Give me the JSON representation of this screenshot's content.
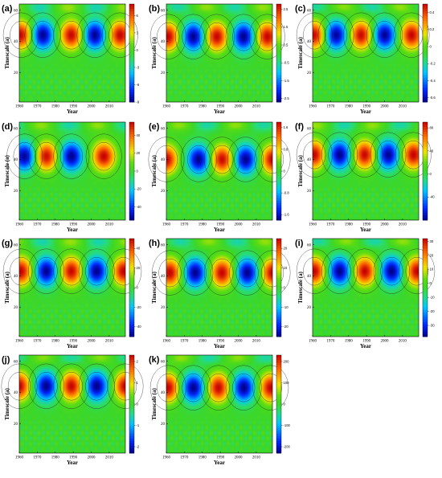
{
  "figure": {
    "y_tick_labels": [
      "20",
      "40",
      "60"
    ],
    "x_tick_labels": [
      "1960",
      "1970",
      "1980",
      "1990",
      "2000",
      "2010"
    ],
    "x_axis_title": "Year",
    "y_axis_title": "Timescale (a)"
  },
  "chart_data": [
    {
      "panel": "(a)",
      "type": "heatmap",
      "xlabel": "Year",
      "ylabel": "Timescale (a)",
      "xlim": [
        1960,
        2019
      ],
      "ylim": [
        1,
        64
      ],
      "colorbar_ticks": [
        "-9",
        "-6",
        "-3",
        "0",
        "3",
        "6"
      ],
      "colorbar_range": [
        -9,
        8
      ],
      "centers_years": [
        1961,
        1973,
        1989,
        2002,
        2016
      ],
      "center_timescale": 44,
      "lobe_signs": [
        1,
        -1,
        1,
        -1,
        1
      ]
    },
    {
      "panel": "(b)",
      "type": "heatmap",
      "xlabel": "Year",
      "ylabel": "Timescale (a)",
      "xlim": [
        1960,
        2019
      ],
      "ylim": [
        1,
        64
      ],
      "colorbar_ticks": [
        "-2.5",
        "-1.5",
        "-0.5",
        "0.5",
        "1.5",
        "2.5"
      ],
      "colorbar_range": [
        -2.7,
        2.8
      ],
      "centers_years": [
        1961,
        1975,
        1988,
        2003,
        2016
      ],
      "center_timescale": 43,
      "lobe_signs": [
        1,
        -1,
        1,
        -1,
        1
      ]
    },
    {
      "panel": "(c)",
      "type": "heatmap",
      "xlabel": "Year",
      "ylabel": "Timescale (a)",
      "xlim": [
        1960,
        2019
      ],
      "ylim": [
        1,
        64
      ],
      "colorbar_ticks": [
        "-0.6",
        "-0.4",
        "-0.2",
        "0",
        "0.2",
        "0.4"
      ],
      "colorbar_range": [
        -0.65,
        0.5
      ],
      "centers_years": [
        1961,
        1973,
        1987,
        2000,
        2015
      ],
      "center_timescale": 44,
      "lobe_signs": [
        1,
        -1,
        1,
        -1,
        1
      ]
    },
    {
      "panel": "(d)",
      "type": "heatmap",
      "xlabel": "Year",
      "ylabel": "Timescale (a)",
      "xlim": [
        1960,
        2019
      ],
      "ylim": [
        1,
        64
      ],
      "colorbar_ticks": [
        "-40",
        "-20",
        "0",
        "20",
        "40"
      ],
      "colorbar_range": [
        -55,
        55
      ],
      "centers_years": [
        1963,
        1975,
        1989,
        2007
      ],
      "center_timescale": 42,
      "lobe_signs": [
        -1,
        1,
        -1,
        1
      ]
    },
    {
      "panel": "(e)",
      "type": "heatmap",
      "xlabel": "Year",
      "ylabel": "Timescale (a)",
      "xlim": [
        1960,
        2019
      ],
      "ylim": [
        1,
        64
      ],
      "colorbar_ticks": [
        "-1.6",
        "-0.8",
        "0",
        "0.8",
        "1.6"
      ],
      "colorbar_range": [
        -1.8,
        1.8
      ],
      "centers_years": [
        1960,
        1978,
        1991,
        2004,
        2019
      ],
      "center_timescale": 40,
      "lobe_signs": [
        1,
        -1,
        1,
        -1,
        1
      ]
    },
    {
      "panel": "(f)",
      "type": "heatmap",
      "xlabel": "Year",
      "ylabel": "Timescale (a)",
      "xlim": [
        1960,
        2019
      ],
      "ylim": [
        1,
        64
      ],
      "colorbar_ticks": [
        "-40",
        "0",
        "40",
        "80"
      ],
      "colorbar_range": [
        -80,
        90
      ],
      "centers_years": [
        1961,
        1975,
        1989,
        2002,
        2016
      ],
      "center_timescale": 43,
      "lobe_signs": [
        1,
        -1,
        1,
        -1,
        1
      ]
    },
    {
      "panel": "(g)",
      "type": "heatmap",
      "xlabel": "Year",
      "ylabel": "Timescale (a)",
      "xlim": [
        1960,
        2019
      ],
      "ylim": [
        1,
        64
      ],
      "colorbar_ticks": [
        "-40",
        "-20",
        "0",
        "20",
        "40"
      ],
      "colorbar_range": [
        -50,
        50
      ],
      "centers_years": [
        1961,
        1975,
        1989,
        2003,
        2018
      ],
      "center_timescale": 43,
      "lobe_signs": [
        1,
        -1,
        1,
        -1,
        1
      ]
    },
    {
      "panel": "(h)",
      "type": "heatmap",
      "xlabel": "Year",
      "ylabel": "Timescale (a)",
      "xlim": [
        1960,
        2019
      ],
      "ylim": [
        1,
        64
      ],
      "colorbar_ticks": [
        "-20",
        "-10",
        "0",
        "10",
        "20"
      ],
      "colorbar_range": [
        -25,
        25
      ],
      "centers_years": [
        1962,
        1976,
        1991,
        2005,
        2019
      ],
      "center_timescale": 42,
      "lobe_signs": [
        1,
        -1,
        1,
        -1,
        1
      ]
    },
    {
      "panel": "(i)",
      "type": "heatmap",
      "xlabel": "Year",
      "ylabel": "Timescale (a)",
      "xlim": [
        1960,
        2019
      ],
      "ylim": [
        1,
        64
      ],
      "colorbar_ticks": [
        "-30",
        "-20",
        "-10",
        "0",
        "10",
        "20",
        "30"
      ],
      "colorbar_range": [
        -38,
        32
      ],
      "centers_years": [
        1961,
        1975,
        1989,
        2004,
        2018
      ],
      "center_timescale": 43,
      "lobe_signs": [
        1,
        -1,
        1,
        -1,
        1
      ]
    },
    {
      "panel": "(j)",
      "type": "heatmap",
      "xlabel": "Year",
      "ylabel": "Timescale (a)",
      "xlim": [
        1960,
        2019
      ],
      "ylim": [
        1,
        64
      ],
      "colorbar_ticks": [
        "-2",
        "-1",
        "0",
        "1",
        "2"
      ],
      "colorbar_range": [
        -2.3,
        2.3
      ],
      "centers_years": [
        1960,
        1975,
        1989,
        2003,
        2019
      ],
      "center_timescale": 44,
      "lobe_signs": [
        1,
        -1,
        1,
        -1,
        1
      ]
    },
    {
      "panel": "(k)",
      "type": "heatmap",
      "xlabel": "Year",
      "ylabel": "Timescale (a)",
      "xlim": [
        1960,
        2019
      ],
      "ylim": [
        1,
        64
      ],
      "colorbar_ticks": [
        "-200",
        "-100",
        "0",
        "100",
        "200"
      ],
      "colorbar_range": [
        -230,
        230
      ],
      "centers_years": [
        1961,
        1975,
        1989,
        2003,
        2018
      ],
      "center_timescale": 43,
      "lobe_signs": [
        1,
        -1,
        1,
        -1,
        1
      ]
    }
  ]
}
